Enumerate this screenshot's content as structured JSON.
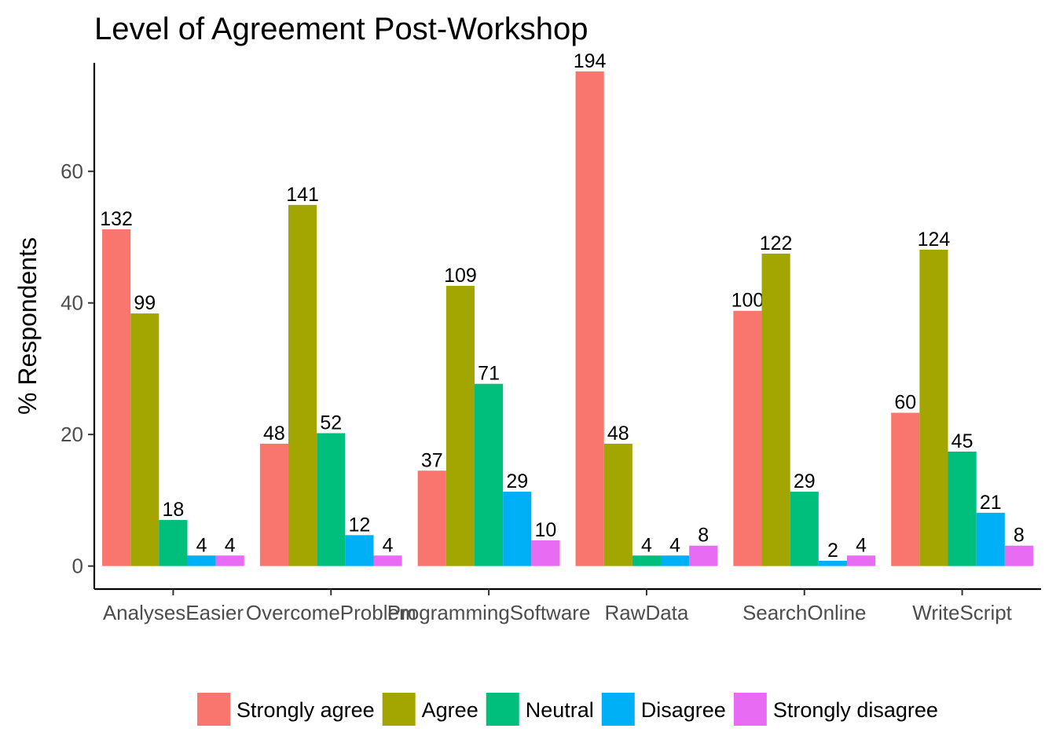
{
  "chart_data": {
    "type": "bar",
    "title": "Level of Agreement Post-Workshop",
    "xlabel": "",
    "ylabel": "% Respondents",
    "ylim": [
      -3.5,
      76.5
    ],
    "yticks": [
      0,
      20,
      40,
      60
    ],
    "grid": false,
    "legend_position": "bottom",
    "categories": [
      "AnalysesEasier",
      "OvercomeProblem",
      "ProgrammingSoftware",
      "RawData",
      "SearchOnline",
      "WriteScript"
    ],
    "series": [
      {
        "name": "Strongly agree",
        "color": "#F8766D",
        "values": [
          51.2,
          18.6,
          14.5,
          75.2,
          38.8,
          23.3
        ],
        "labels": [
          "132",
          "48",
          "37",
          "194",
          "100",
          "60"
        ]
      },
      {
        "name": "Agree",
        "color": "#A3A500",
        "values": [
          38.4,
          54.9,
          42.6,
          18.6,
          47.5,
          48.1
        ],
        "labels": [
          "99",
          "141",
          "109",
          "48",
          "122",
          "124"
        ]
      },
      {
        "name": "Neutral",
        "color": "#00BF7D",
        "values": [
          7.0,
          20.2,
          27.7,
          1.6,
          11.3,
          17.4
        ],
        "labels": [
          "18",
          "52",
          "71",
          "4",
          "29",
          "45"
        ]
      },
      {
        "name": "Disagree",
        "color": "#00B0F6",
        "values": [
          1.6,
          4.7,
          11.3,
          1.6,
          0.8,
          8.1
        ],
        "labels": [
          "4",
          "12",
          "29",
          "4",
          "2",
          "21"
        ]
      },
      {
        "name": "Strongly disagree",
        "color": "#E76BF3",
        "values": [
          1.6,
          1.6,
          3.9,
          3.1,
          1.6,
          3.1
        ],
        "labels": [
          "4",
          "4",
          "10",
          "8",
          "4",
          "8"
        ]
      }
    ]
  }
}
